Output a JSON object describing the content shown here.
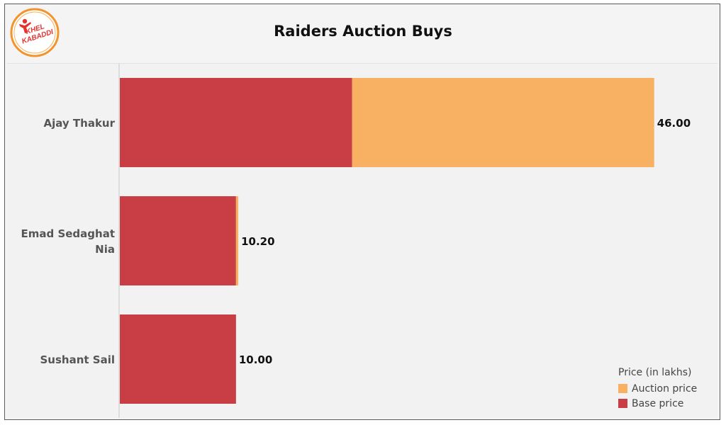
{
  "header": {
    "title": "Raiders Auction Buys",
    "logo_text": "KHEL KABADDI"
  },
  "colors": {
    "base": "#c93d45",
    "auction": "#f8b062",
    "logo_ring": "#f2942e"
  },
  "legend": {
    "title": "Price (in lakhs)",
    "items": [
      {
        "label": "Auction price",
        "color": "#f8b062"
      },
      {
        "label": "Base price",
        "color": "#c93d45"
      }
    ]
  },
  "chart_data": {
    "type": "bar",
    "orientation": "horizontal",
    "stacked": true,
    "title": "Raiders Auction Buys",
    "categories": [
      "Ajay Thakur",
      "Emad Sedaghat Nia",
      "Sushant Sail"
    ],
    "series": [
      {
        "name": "Base price",
        "values": [
          20,
          10,
          10
        ]
      },
      {
        "name": "Auction price",
        "values": [
          26,
          0.2,
          0
        ]
      }
    ],
    "totals": [
      "46.00",
      "10.20",
      "10.00"
    ],
    "xlim": [
      0,
      50
    ],
    "legend_position": "bottom-right",
    "grid": false
  }
}
